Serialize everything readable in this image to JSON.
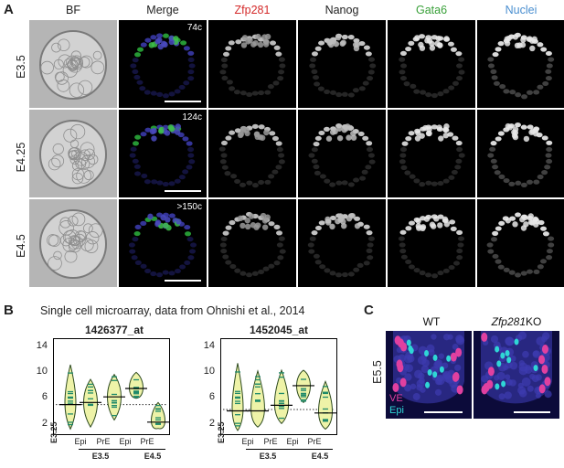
{
  "panel_a": {
    "letter": "A",
    "columns": [
      "BF",
      "Merge",
      "Zfp281",
      "Nanog",
      "Gata6",
      "Nuclei"
    ],
    "column_colors": [
      "#222222",
      "#222222",
      "#d42a2a",
      "#222222",
      "#3aa13a",
      "#4a8fd0"
    ],
    "rows": [
      {
        "stage": "E3.5",
        "cells": "74c"
      },
      {
        "stage": "E4.25",
        "cells": "124c"
      },
      {
        "stage": "E4.5",
        "cells": ">150c"
      }
    ]
  },
  "panel_b": {
    "letter": "B",
    "subtitle": "Single cell microarray, data from Ohnishi et al., 2014",
    "plots": [
      {
        "title": "1426377_at"
      },
      {
        "title": "1452045_at"
      }
    ],
    "yticks": [
      "14",
      "10",
      "6",
      "2"
    ],
    "x_single": "E3.25",
    "x_pairs": [
      "Epi",
      "PrE",
      "Epi",
      "PrE"
    ],
    "x_groups": [
      "E3.5",
      "E4.5"
    ]
  },
  "panel_c": {
    "letter": "C",
    "stage": "E5.5",
    "wt_label": "WT",
    "ko_italic": "Zfp281",
    "ko_suffix": "KO",
    "legend_ve": "VE",
    "legend_epi": "Epi",
    "ve_color": "#e040a0",
    "epi_color": "#2fd6d6"
  },
  "chart_data": [
    {
      "type": "violin",
      "title": "1426377_at",
      "categories": [
        "E3.25",
        "E3.5 Epi",
        "E3.5 PrE",
        "E4.5 Epi",
        "E4.5 PrE"
      ],
      "medians": [
        5.7,
        6.0,
        6.8,
        8.0,
        3.2
      ],
      "ranges": [
        [
          2.2,
          11.4
        ],
        [
          2.5,
          9.3
        ],
        [
          3.5,
          10.0
        ],
        [
          6.6,
          10.3
        ],
        [
          2.3,
          6.0
        ]
      ],
      "reference_line": 5.7,
      "ylim": [
        2,
        14
      ]
    },
    {
      "type": "violin",
      "title": "1452045_at",
      "categories": [
        "E3.25",
        "E3.5 Epi",
        "E3.5 PrE",
        "E4.5 Epi",
        "E4.5 PrE"
      ],
      "medians": [
        4.8,
        4.8,
        5.6,
        8.4,
        4.5
      ],
      "ranges": [
        [
          2.0,
          11.6
        ],
        [
          2.5,
          10.5
        ],
        [
          3.0,
          10.6
        ],
        [
          6.0,
          10.6
        ],
        [
          2.2,
          9.0
        ]
      ],
      "reference_line": 5.0,
      "ylim": [
        2,
        14
      ]
    }
  ]
}
